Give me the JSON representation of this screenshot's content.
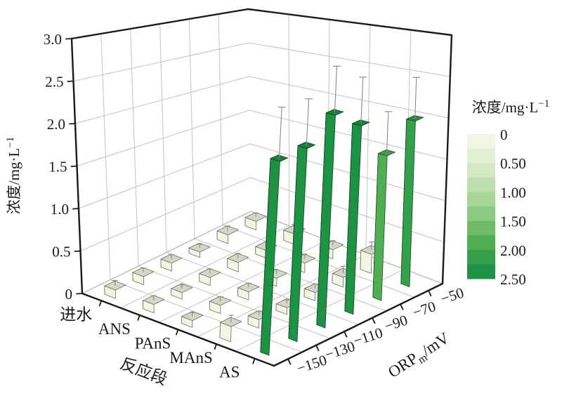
{
  "figure": {
    "background": "#ffffff"
  },
  "chart_data": {
    "type": "bar",
    "subtype": "3d-bar",
    "title": "",
    "x_axis": {
      "label": "反应段",
      "categories": [
        "进水",
        "ANS",
        "PAnS",
        "MAnS",
        "AS"
      ]
    },
    "y_axis": {
      "label_base": "ORP",
      "label_sub": "m",
      "label_rest": "/mV",
      "tick_labels": [
        "−150",
        "−130",
        "−110",
        "−90",
        "−70",
        "−50"
      ],
      "tick_values": [
        -150,
        -130,
        -110,
        -90,
        -70,
        -50
      ]
    },
    "z_axis": {
      "label_base": "浓度/mg·L",
      "label_sup": "−1",
      "tick_labels": [
        "0",
        "0.5",
        "1.0",
        "1.5",
        "2.0",
        "2.5",
        "3.0"
      ],
      "tick_values": [
        0,
        0.5,
        1.0,
        1.5,
        2.0,
        2.5,
        3.0
      ],
      "range": [
        0,
        3.0
      ],
      "grid": true
    },
    "series": [
      {
        "name": "进水",
        "values": [
          0.1,
          0.1,
          0.1,
          0.07,
          0.12,
          0.12
        ],
        "errors": [
          0.06,
          0.05,
          0.05,
          0.04,
          0.06,
          0.06
        ]
      },
      {
        "name": "ANS",
        "values": [
          0.1,
          0.08,
          0.1,
          0.12,
          0.1,
          0.14
        ],
        "errors": [
          0.05,
          0.04,
          0.05,
          0.06,
          0.05,
          0.07
        ]
      },
      {
        "name": "PAnS",
        "values": [
          0.08,
          0.1,
          0.1,
          0.1,
          0.12,
          0.12
        ],
        "errors": [
          0.04,
          0.05,
          0.05,
          0.05,
          0.06,
          0.06
        ]
      },
      {
        "name": "MAnS",
        "values": [
          0.18,
          0.1,
          0.08,
          0.1,
          0.12,
          0.24
        ],
        "errors": [
          0.08,
          0.05,
          0.04,
          0.05,
          0.08,
          0.1
        ]
      },
      {
        "name": "AS",
        "values": [
          2.27,
          2.28,
          2.53,
          2.26,
          1.75,
          2.02
        ],
        "errors": [
          0.6,
          0.55,
          0.55,
          0.55,
          0.5,
          0.5
        ]
      }
    ],
    "colorbar": {
      "title_base": "浓度/mg·L",
      "title_sup": "−1",
      "tick_labels": [
        "0",
        "0.50",
        "1.00",
        "1.50",
        "2.00",
        "2.50"
      ],
      "step_size": 0.25,
      "palette": [
        "#f0f6e1",
        "#e3efd3",
        "#d3e8c3",
        "#c0dfaf",
        "#a8d598",
        "#8cc981",
        "#6ebc67",
        "#4fae52",
        "#35a04b",
        "#1d9245"
      ]
    },
    "colors": {
      "grid_line": "#c9beba",
      "wall_fill": "#ffffff",
      "axis_line": "#1a1a1a",
      "error_bar": "#8a8a8a",
      "text": "#1a1a1a"
    }
  }
}
